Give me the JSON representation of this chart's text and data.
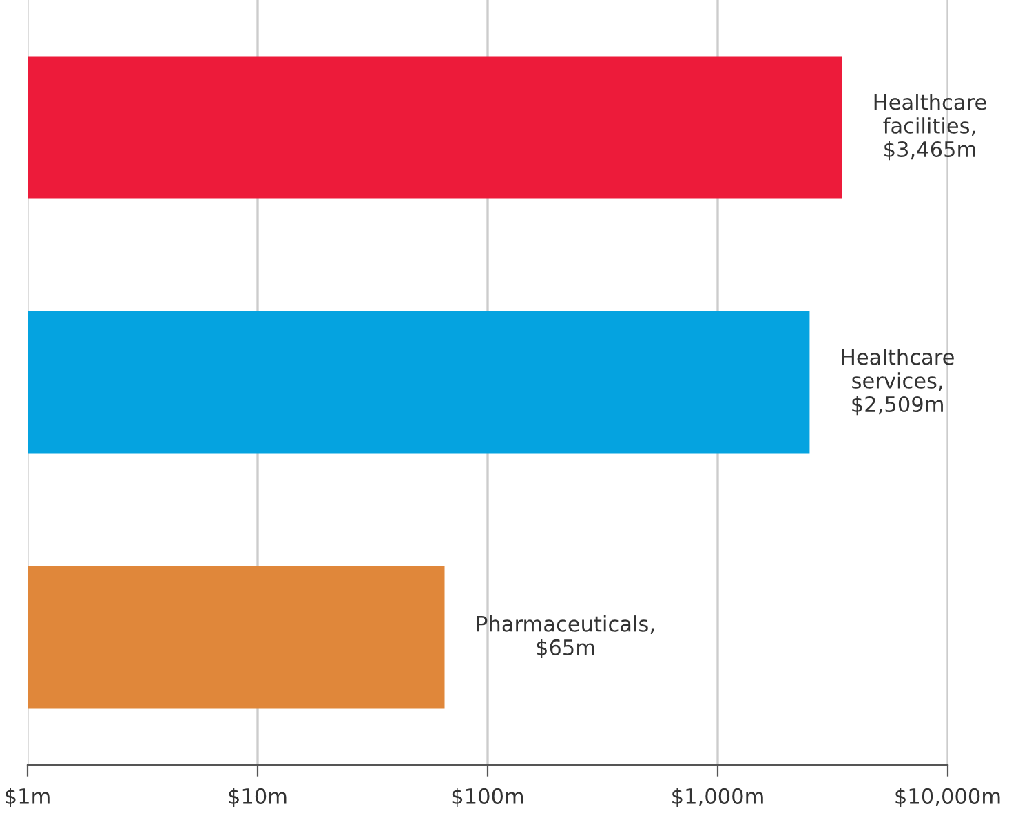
{
  "chart_data": {
    "type": "bar",
    "orientation": "horizontal",
    "log": "x",
    "categories": [
      null,
      null,
      null
    ],
    "values": [
      3465,
      2509,
      65
    ],
    "colors": [
      "#ed1b3a",
      "#05a3e0",
      "#e0873a"
    ],
    "value_labels": [
      "Healthcare\nfacilities,\n$3,465m",
      "Healthcare\nservices,\n$2,509m",
      "Pharmaceuticals,\n$65m"
    ],
    "xlim": [
      1,
      10000
    ],
    "xticks": [
      {
        "value": 1,
        "label": "$1m"
      },
      {
        "value": 10,
        "label": "$10m"
      },
      {
        "value": 100,
        "label": "$100m"
      },
      {
        "value": 1000,
        "label": "$1,000m"
      },
      {
        "value": 10000,
        "label": "$10,000m"
      }
    ],
    "grid": "x"
  }
}
